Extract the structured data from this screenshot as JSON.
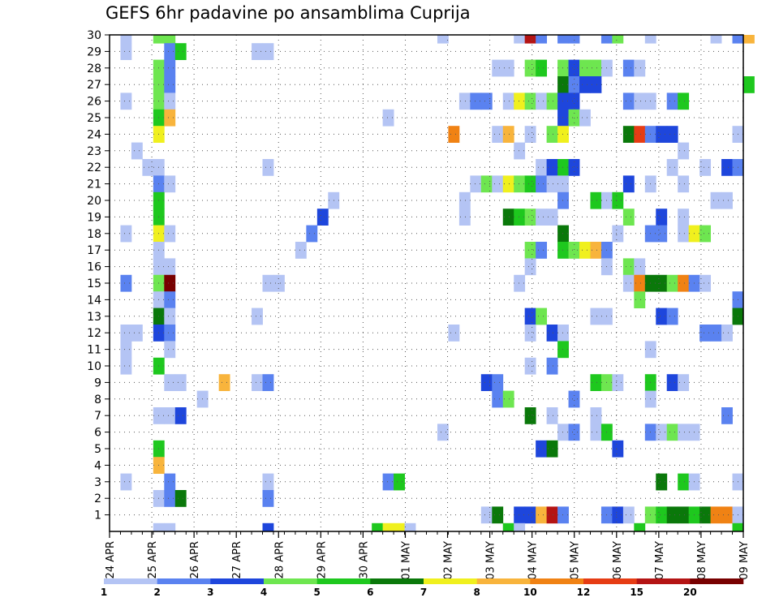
{
  "chart_data": {
    "type": "heatmap",
    "title": "GEFS 6hr padavine po ansamblima Cuprija",
    "x_labels": [
      "24 APR",
      "25 APR",
      "26 APR",
      "27 APR",
      "28 APR",
      "29 APR",
      "30 APR",
      "01 MAY",
      "02 MAY",
      "03 MAY",
      "04 MAY",
      "05 MAY",
      "06 MAY",
      "07 MAY",
      "08 MAY",
      "09 MAY"
    ],
    "y_ticks": [
      1,
      2,
      3,
      4,
      5,
      6,
      7,
      8,
      9,
      10,
      11,
      12,
      13,
      14,
      15,
      16,
      17,
      18,
      19,
      20,
      21,
      22,
      23,
      24,
      25,
      26,
      27,
      28,
      29,
      30
    ],
    "ylim": [
      0,
      30
    ],
    "grid": true,
    "colorbar": {
      "labels": [
        "1",
        "2",
        "3",
        "4",
        "5",
        "6",
        "7",
        "8",
        "10",
        "12",
        "15",
        "20"
      ],
      "colors": [
        "#b4c4f4",
        "#5a82f0",
        "#1e46dc",
        "#6ee650",
        "#1ec81e",
        "#0a780a",
        "#f0f01e",
        "#f8b43c",
        "#f08214",
        "#e63c14",
        "#b41414",
        "#780000"
      ]
    },
    "x_steps": 58,
    "cells": [
      [
        1,
        30,
        1
      ],
      [
        4,
        30,
        4
      ],
      [
        5,
        30,
        4
      ],
      [
        30,
        30,
        1
      ],
      [
        37,
        30,
        1
      ],
      [
        38,
        30,
        11
      ],
      [
        39,
        30,
        2
      ],
      [
        41,
        30,
        2
      ],
      [
        42,
        30,
        2
      ],
      [
        45,
        30,
        2
      ],
      [
        46,
        30,
        4
      ],
      [
        49,
        30,
        1
      ],
      [
        55,
        30,
        1
      ],
      [
        57,
        30,
        2
      ],
      [
        58,
        30,
        8
      ],
      [
        1,
        29,
        1
      ],
      [
        5,
        29,
        2
      ],
      [
        6,
        29,
        5
      ],
      [
        13,
        29,
        1
      ],
      [
        14,
        29,
        1
      ],
      [
        4,
        28,
        4
      ],
      [
        5,
        28,
        2
      ],
      [
        35,
        28,
        1
      ],
      [
        36,
        28,
        1
      ],
      [
        38,
        28,
        4
      ],
      [
        39,
        28,
        5
      ],
      [
        41,
        28,
        4
      ],
      [
        42,
        28,
        3
      ],
      [
        43,
        28,
        4
      ],
      [
        44,
        28,
        4
      ],
      [
        45,
        28,
        1
      ],
      [
        47,
        28,
        2
      ],
      [
        48,
        28,
        1
      ],
      [
        4,
        27,
        4
      ],
      [
        5,
        27,
        2
      ],
      [
        41,
        27,
        6
      ],
      [
        42,
        27,
        2
      ],
      [
        43,
        27,
        3
      ],
      [
        44,
        27,
        3
      ],
      [
        58,
        27,
        5
      ],
      [
        1,
        26,
        1
      ],
      [
        4,
        26,
        4
      ],
      [
        5,
        26,
        1
      ],
      [
        32,
        26,
        1
      ],
      [
        33,
        26,
        2
      ],
      [
        34,
        26,
        2
      ],
      [
        36,
        26,
        1
      ],
      [
        37,
        26,
        7
      ],
      [
        38,
        26,
        4
      ],
      [
        39,
        26,
        1
      ],
      [
        40,
        26,
        4
      ],
      [
        41,
        26,
        3
      ],
      [
        42,
        26,
        3
      ],
      [
        47,
        26,
        2
      ],
      [
        48,
        26,
        1
      ],
      [
        49,
        26,
        1
      ],
      [
        51,
        26,
        2
      ],
      [
        52,
        26,
        5
      ],
      [
        4,
        25,
        5
      ],
      [
        5,
        25,
        8
      ],
      [
        25,
        25,
        1
      ],
      [
        41,
        25,
        3
      ],
      [
        42,
        25,
        4
      ],
      [
        43,
        25,
        1
      ],
      [
        4,
        24,
        7
      ],
      [
        31,
        24,
        9
      ],
      [
        35,
        24,
        1
      ],
      [
        36,
        24,
        8
      ],
      [
        38,
        24,
        1
      ],
      [
        40,
        24,
        4
      ],
      [
        41,
        24,
        7
      ],
      [
        47,
        24,
        6
      ],
      [
        48,
        24,
        10
      ],
      [
        49,
        24,
        2
      ],
      [
        50,
        24,
        3
      ],
      [
        51,
        24,
        3
      ],
      [
        57,
        24,
        1
      ],
      [
        2,
        23,
        1
      ],
      [
        37,
        23,
        1
      ],
      [
        52,
        23,
        1
      ],
      [
        3,
        22,
        1
      ],
      [
        4,
        22,
        1
      ],
      [
        14,
        22,
        1
      ],
      [
        39,
        22,
        1
      ],
      [
        40,
        22,
        3
      ],
      [
        41,
        22,
        5
      ],
      [
        42,
        22,
        3
      ],
      [
        51,
        22,
        1
      ],
      [
        54,
        22,
        1
      ],
      [
        56,
        22,
        3
      ],
      [
        57,
        22,
        2
      ],
      [
        4,
        21,
        2
      ],
      [
        5,
        21,
        1
      ],
      [
        33,
        21,
        1
      ],
      [
        34,
        21,
        4
      ],
      [
        35,
        21,
        1
      ],
      [
        36,
        21,
        7
      ],
      [
        37,
        21,
        4
      ],
      [
        38,
        21,
        5
      ],
      [
        39,
        21,
        2
      ],
      [
        40,
        21,
        1
      ],
      [
        41,
        21,
        1
      ],
      [
        47,
        21,
        3
      ],
      [
        49,
        21,
        1
      ],
      [
        52,
        21,
        1
      ],
      [
        4,
        20,
        5
      ],
      [
        20,
        20,
        1
      ],
      [
        32,
        20,
        1
      ],
      [
        41,
        20,
        2
      ],
      [
        44,
        20,
        5
      ],
      [
        45,
        20,
        1
      ],
      [
        46,
        20,
        5
      ],
      [
        55,
        20,
        1
      ],
      [
        56,
        20,
        1
      ],
      [
        4,
        19,
        5
      ],
      [
        19,
        19,
        3
      ],
      [
        32,
        19,
        1
      ],
      [
        36,
        19,
        6
      ],
      [
        37,
        19,
        5
      ],
      [
        38,
        19,
        4
      ],
      [
        39,
        19,
        1
      ],
      [
        40,
        19,
        1
      ],
      [
        47,
        19,
        4
      ],
      [
        50,
        19,
        3
      ],
      [
        52,
        19,
        1
      ],
      [
        1,
        18,
        1
      ],
      [
        4,
        18,
        7
      ],
      [
        5,
        18,
        1
      ],
      [
        18,
        18,
        2
      ],
      [
        41,
        18,
        6
      ],
      [
        46,
        18,
        1
      ],
      [
        49,
        18,
        2
      ],
      [
        50,
        18,
        2
      ],
      [
        52,
        18,
        1
      ],
      [
        53,
        18,
        7
      ],
      [
        54,
        18,
        4
      ],
      [
        4,
        17,
        1
      ],
      [
        17,
        17,
        1
      ],
      [
        38,
        17,
        4
      ],
      [
        39,
        17,
        2
      ],
      [
        41,
        17,
        5
      ],
      [
        42,
        17,
        4
      ],
      [
        43,
        17,
        7
      ],
      [
        44,
        17,
        8
      ],
      [
        45,
        17,
        2
      ],
      [
        4,
        16,
        1
      ],
      [
        5,
        16,
        1
      ],
      [
        38,
        16,
        1
      ],
      [
        45,
        16,
        1
      ],
      [
        47,
        16,
        4
      ],
      [
        48,
        16,
        1
      ],
      [
        1,
        15,
        2
      ],
      [
        4,
        15,
        4
      ],
      [
        5,
        15,
        12
      ],
      [
        14,
        15,
        1
      ],
      [
        15,
        15,
        1
      ],
      [
        37,
        15,
        1
      ],
      [
        47,
        15,
        1
      ],
      [
        48,
        15,
        9
      ],
      [
        49,
        15,
        6
      ],
      [
        50,
        15,
        6
      ],
      [
        51,
        15,
        4
      ],
      [
        52,
        15,
        9
      ],
      [
        53,
        15,
        2
      ],
      [
        54,
        15,
        1
      ],
      [
        4,
        14,
        1
      ],
      [
        5,
        14,
        2
      ],
      [
        48,
        14,
        4
      ],
      [
        57,
        14,
        2
      ],
      [
        4,
        13,
        6
      ],
      [
        5,
        13,
        1
      ],
      [
        13,
        13,
        1
      ],
      [
        38,
        13,
        3
      ],
      [
        39,
        13,
        4
      ],
      [
        44,
        13,
        1
      ],
      [
        45,
        13,
        1
      ],
      [
        50,
        13,
        3
      ],
      [
        51,
        13,
        2
      ],
      [
        57,
        13,
        6
      ],
      [
        1,
        12,
        1
      ],
      [
        2,
        12,
        1
      ],
      [
        4,
        12,
        3
      ],
      [
        5,
        12,
        2
      ],
      [
        31,
        12,
        1
      ],
      [
        38,
        12,
        1
      ],
      [
        40,
        12,
        3
      ],
      [
        41,
        12,
        1
      ],
      [
        54,
        12,
        2
      ],
      [
        55,
        12,
        2
      ],
      [
        56,
        12,
        1
      ],
      [
        1,
        11,
        1
      ],
      [
        5,
        11,
        1
      ],
      [
        41,
        11,
        5
      ],
      [
        49,
        11,
        1
      ],
      [
        1,
        10,
        1
      ],
      [
        4,
        10,
        5
      ],
      [
        38,
        10,
        1
      ],
      [
        40,
        10,
        2
      ],
      [
        5,
        9,
        1
      ],
      [
        6,
        9,
        1
      ],
      [
        10,
        9,
        8
      ],
      [
        13,
        9,
        1
      ],
      [
        14,
        9,
        2
      ],
      [
        34,
        9,
        3
      ],
      [
        35,
        9,
        2
      ],
      [
        44,
        9,
        5
      ],
      [
        45,
        9,
        4
      ],
      [
        46,
        9,
        1
      ],
      [
        49,
        9,
        5
      ],
      [
        51,
        9,
        3
      ],
      [
        52,
        9,
        1
      ],
      [
        8,
        8,
        1
      ],
      [
        35,
        8,
        2
      ],
      [
        36,
        8,
        4
      ],
      [
        42,
        8,
        2
      ],
      [
        49,
        8,
        1
      ],
      [
        4,
        7,
        1
      ],
      [
        5,
        7,
        1
      ],
      [
        6,
        7,
        3
      ],
      [
        38,
        7,
        6
      ],
      [
        40,
        7,
        1
      ],
      [
        44,
        7,
        1
      ],
      [
        56,
        7,
        2
      ],
      [
        30,
        6,
        1
      ],
      [
        41,
        6,
        1
      ],
      [
        42,
        6,
        2
      ],
      [
        44,
        6,
        1
      ],
      [
        45,
        6,
        5
      ],
      [
        49,
        6,
        2
      ],
      [
        50,
        6,
        1
      ],
      [
        51,
        6,
        4
      ],
      [
        52,
        6,
        1
      ],
      [
        53,
        6,
        1
      ],
      [
        4,
        5,
        5
      ],
      [
        39,
        5,
        3
      ],
      [
        40,
        5,
        6
      ],
      [
        46,
        5,
        3
      ],
      [
        4,
        4,
        8
      ],
      [
        1,
        3,
        1
      ],
      [
        5,
        3,
        2
      ],
      [
        14,
        3,
        1
      ],
      [
        25,
        3,
        2
      ],
      [
        26,
        3,
        5
      ],
      [
        50,
        3,
        6
      ],
      [
        52,
        3,
        5
      ],
      [
        53,
        3,
        1
      ],
      [
        57,
        3,
        1
      ],
      [
        4,
        2,
        1
      ],
      [
        5,
        2,
        2
      ],
      [
        6,
        2,
        6
      ],
      [
        14,
        2,
        2
      ],
      [
        34,
        1,
        1
      ],
      [
        35,
        1,
        6
      ],
      [
        37,
        1,
        3
      ],
      [
        38,
        1,
        3
      ],
      [
        39,
        1,
        8
      ],
      [
        40,
        1,
        11
      ],
      [
        41,
        1,
        2
      ],
      [
        45,
        1,
        2
      ],
      [
        46,
        1,
        3
      ],
      [
        47,
        1,
        1
      ],
      [
        49,
        1,
        4
      ],
      [
        50,
        1,
        5
      ],
      [
        51,
        1,
        6
      ],
      [
        52,
        1,
        6
      ],
      [
        53,
        1,
        5
      ],
      [
        54,
        1,
        6
      ],
      [
        55,
        1,
        9
      ],
      [
        56,
        1,
        9
      ],
      [
        57,
        1,
        1
      ],
      [
        4,
        0,
        1
      ],
      [
        5,
        0,
        1
      ],
      [
        14,
        0,
        3
      ],
      [
        24,
        0,
        5
      ],
      [
        25,
        0,
        7
      ],
      [
        26,
        0,
        7
      ],
      [
        27,
        0,
        1
      ],
      [
        36,
        0,
        5
      ],
      [
        37,
        0,
        1
      ],
      [
        48,
        0,
        5
      ],
      [
        57,
        0,
        5
      ]
    ]
  }
}
